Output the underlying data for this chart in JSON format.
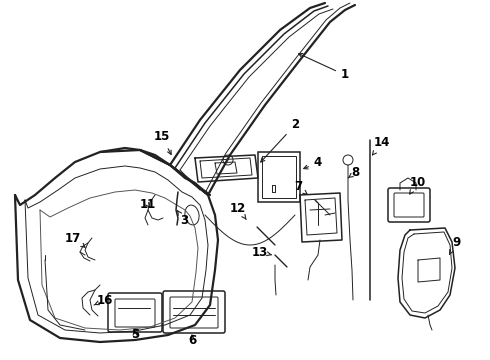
{
  "bg_color": "#ffffff",
  "line_color": "#222222",
  "label_color": "#000000",
  "label_fontsize": 8.5,
  "label_fontweight": "bold",
  "figsize": [
    4.9,
    3.6
  ],
  "dpi": 100,
  "xlim": [
    0,
    490
  ],
  "ylim": [
    0,
    360
  ]
}
